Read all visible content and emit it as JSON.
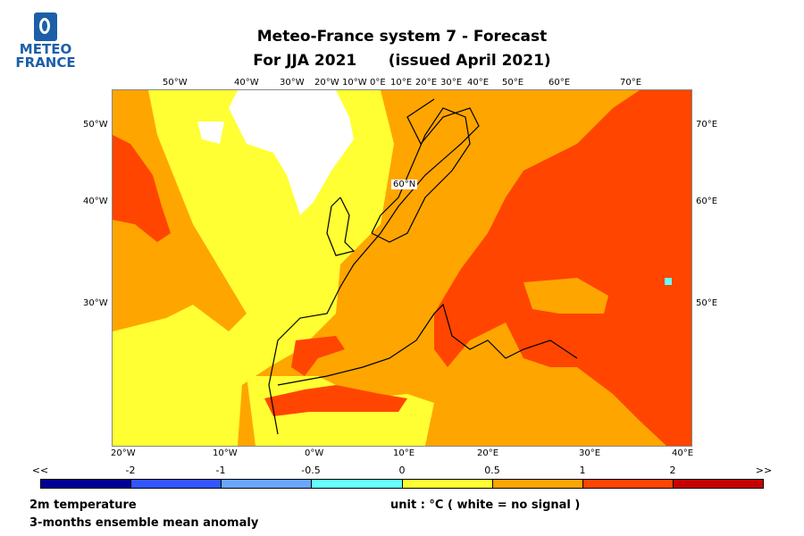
{
  "logo": {
    "line1": "METEO",
    "line2": "FRANCE"
  },
  "header": {
    "title_line1": "Meteo-France system 7  -  Forecast",
    "title_line2": "For JJA 2021      (issued April 2021)"
  },
  "map": {
    "top_labels": [
      "50°W",
      "40°W",
      "30°W",
      "20°W",
      "10°W",
      "0°E",
      "10°E",
      "20°E",
      "30°E",
      "40°E",
      "50°E",
      "60°E",
      "70°E"
    ],
    "left_labels": [
      "50°W",
      "40°W",
      "30°W"
    ],
    "right_labels": [
      "70°E",
      "60°E",
      "50°E"
    ],
    "bottom_labels": [
      "20°W",
      "10°W",
      "0°W",
      "10°E",
      "20°E",
      "30°E",
      "40°E"
    ],
    "inner_label": "60°N",
    "colors": {
      "no_signal": "#ffffff",
      "light": "#ffff33",
      "medium": "#ffa500",
      "strong": "#ff4500",
      "very_strong": "#c80000",
      "cyan": "#66ffff"
    }
  },
  "colorbar": {
    "ticks": [
      "<<",
      "-2",
      "-1",
      "-0.5",
      "0",
      "0.5",
      "1",
      "2",
      ">>"
    ],
    "colors": [
      "#000096",
      "#3255ff",
      "#6aa6ff",
      "#66ffff",
      "#ffff33",
      "#ffa500",
      "#ff4500",
      "#c80000"
    ]
  },
  "footer": {
    "variable": "2m temperature",
    "description": "3-months ensemble mean anomaly",
    "unit": "unit : °C  ( white = no signal )"
  }
}
